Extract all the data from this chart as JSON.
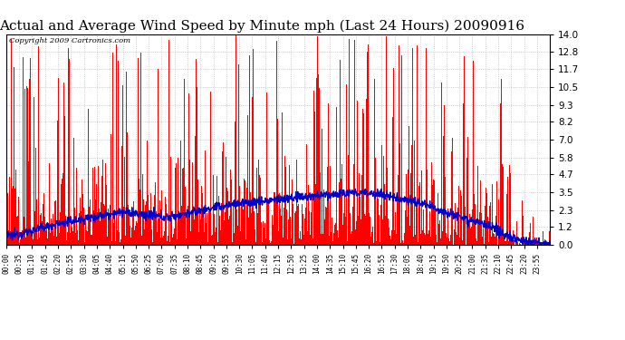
{
  "title": "Actual and Average Wind Speed by Minute mph (Last 24 Hours) 20090916",
  "copyright": "Copyright 2009 Cartronics.com",
  "yticks": [
    0.0,
    1.2,
    2.3,
    3.5,
    4.7,
    5.8,
    7.0,
    8.2,
    9.3,
    10.5,
    11.7,
    12.8,
    14.0
  ],
  "ylim": [
    0.0,
    14.0
  ],
  "bar_color": "#ff0000",
  "line_color": "#0000cc",
  "background_color": "#ffffff",
  "grid_color": "#bbbbbb",
  "title_fontsize": 11,
  "copyright_fontsize": 7,
  "xtick_labels": [
    "00:00",
    "00:35",
    "01:10",
    "01:45",
    "02:20",
    "02:55",
    "03:30",
    "04:05",
    "04:40",
    "05:15",
    "05:50",
    "06:25",
    "07:00",
    "07:35",
    "08:10",
    "08:45",
    "09:20",
    "09:55",
    "10:30",
    "11:05",
    "11:40",
    "12:15",
    "12:50",
    "13:25",
    "14:00",
    "14:35",
    "15:10",
    "15:45",
    "16:20",
    "16:55",
    "17:30",
    "18:05",
    "18:40",
    "19:15",
    "19:50",
    "20:25",
    "21:00",
    "21:35",
    "22:10",
    "22:45",
    "23:20",
    "23:55"
  ],
  "figwidth": 6.9,
  "figheight": 3.75,
  "dpi": 100
}
